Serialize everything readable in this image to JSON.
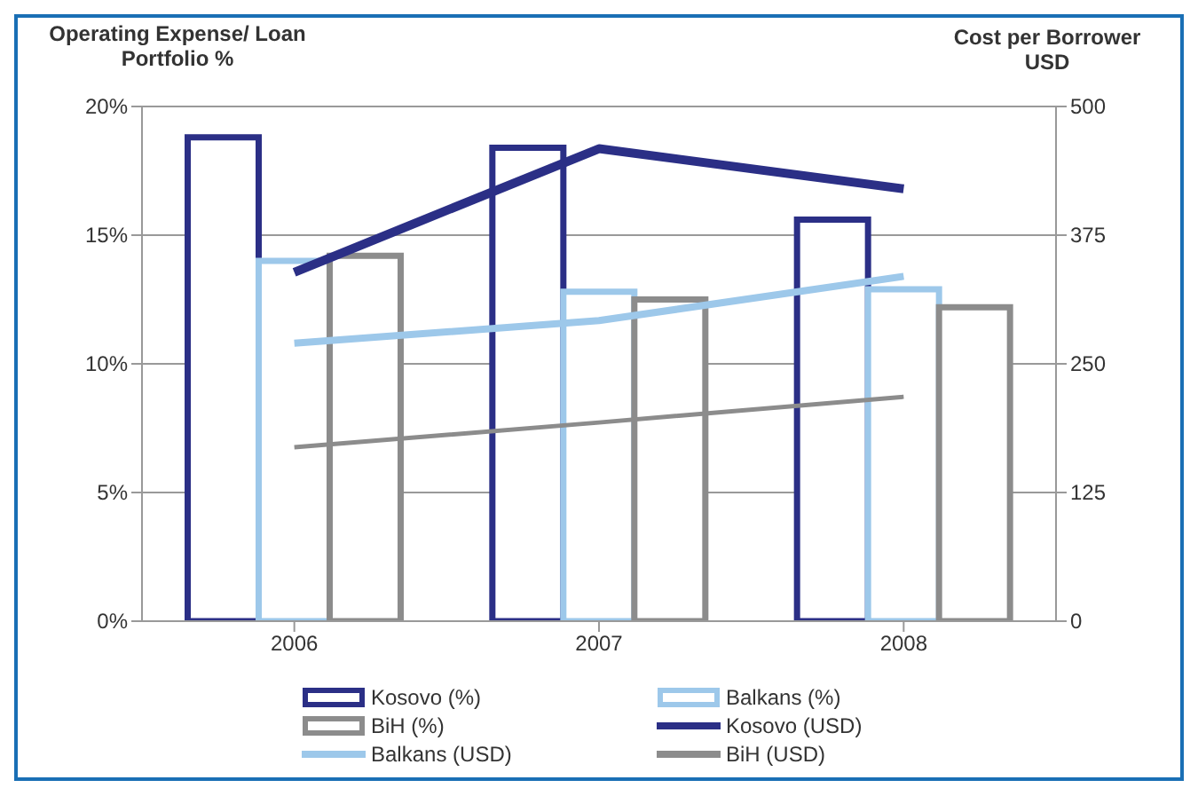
{
  "chart_data": {
    "type": "bar",
    "ylabel": "Operating Expense/ Loan Portfolio %",
    "y2label": "Cost per Borrower USD",
    "categories": [
      "2006",
      "2007",
      "2008"
    ],
    "series": [
      {
        "name": "Kosovo (%)",
        "color": "#2b2f86",
        "values": [
          18.8,
          18.4,
          15.6
        ]
      },
      {
        "name": "Balkans (%)",
        "color": "#9dc8ea",
        "values": [
          14.0,
          12.8,
          12.9
        ]
      },
      {
        "name": "BiH (%)",
        "color": "#8c8c8c",
        "values": [
          14.2,
          12.5,
          12.2
        ]
      },
      {
        "name": "Kosovo (USD)",
        "type": "line",
        "axis": "y2",
        "color": "#2b2f86",
        "values": [
          339,
          459,
          420
        ]
      },
      {
        "name": "Balkans (USD)",
        "type": "line",
        "axis": "y2",
        "color": "#9dc8ea",
        "values": [
          270,
          292,
          335
        ]
      },
      {
        "name": "BiH (USD)",
        "type": "line",
        "axis": "y2",
        "color": "#8c8c8c",
        "values": [
          169,
          193,
          218
        ]
      }
    ],
    "ylim": [
      0,
      20
    ],
    "yticks": [
      {
        "value": 0,
        "label": "0%"
      },
      {
        "value": 5,
        "label": "5%"
      },
      {
        "value": 10,
        "label": "10%"
      },
      {
        "value": 15,
        "label": "15%"
      },
      {
        "value": 20,
        "label": "20%"
      }
    ],
    "y2lim": [
      0,
      500
    ],
    "y2ticks": [
      0,
      125,
      250,
      375,
      500
    ],
    "grid": "y",
    "legend": "bottom"
  }
}
